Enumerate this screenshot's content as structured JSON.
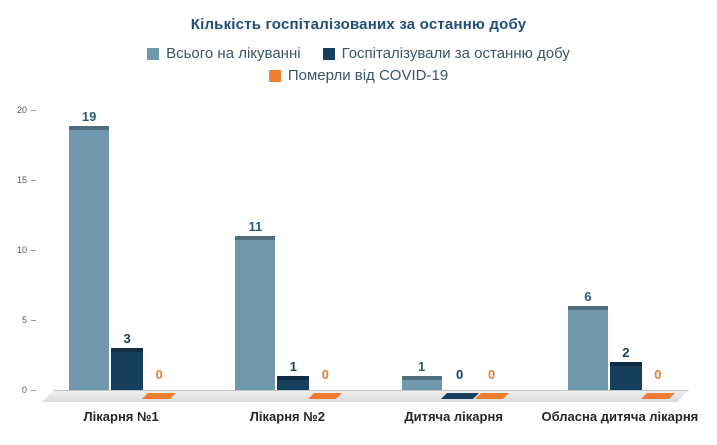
{
  "chart_data": {
    "type": "bar",
    "title": "Кількість госпіталізованих за останню добу",
    "categories": [
      "Лікарня №1",
      "Лікарня №2",
      "Дитяча лікарня",
      "Обласна дитяча лікарня"
    ],
    "series": [
      {
        "name": "Всього на лікуванні",
        "color": "#6f98ad",
        "label_color": "#2c5d77",
        "values": [
          19,
          11,
          1,
          6
        ]
      },
      {
        "name": "Госпіталізували за останню добу",
        "color": "#16405e",
        "label_color": "#173f5e",
        "values": [
          3,
          1,
          0,
          2
        ]
      },
      {
        "name": "Померли від COVID-19",
        "color": "#ed7d31",
        "label_color": "#ed7d31",
        "values": [
          0,
          0,
          0,
          0
        ]
      }
    ],
    "ylim": [
      0,
      20
    ],
    "yticks": [
      0,
      5,
      10,
      15,
      20
    ],
    "legend_position": "top",
    "legend_rows": [
      [
        0,
        1
      ],
      [
        2
      ]
    ],
    "grid": false,
    "title_color": "#1f4e79"
  }
}
